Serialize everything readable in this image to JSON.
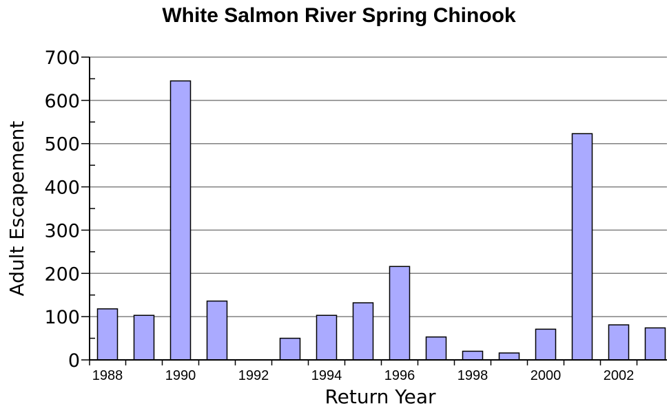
{
  "chart_data": {
    "type": "bar",
    "title": "White Salmon River Spring Chinook",
    "xlabel": "Return Year",
    "ylabel": "Adult Escapement",
    "ylim": [
      0,
      700
    ],
    "yticks": [
      0,
      100,
      200,
      300,
      400,
      500,
      600,
      700
    ],
    "xticks": [
      "1988",
      "1990",
      "1992",
      "1994",
      "1996",
      "1998",
      "2000",
      "2002"
    ],
    "grid": true,
    "categories": [
      "1988",
      "1989",
      "1990",
      "1991",
      "1992",
      "1993",
      "1994",
      "1995",
      "1996",
      "1997",
      "1998",
      "1999",
      "2000",
      "2001",
      "2002",
      "2003"
    ],
    "values": [
      118,
      103,
      645,
      136,
      0,
      50,
      103,
      132,
      216,
      53,
      20,
      16,
      71,
      523,
      81,
      74
    ],
    "colors": {
      "bar": "#aaaaff",
      "grid": "#808080"
    }
  }
}
